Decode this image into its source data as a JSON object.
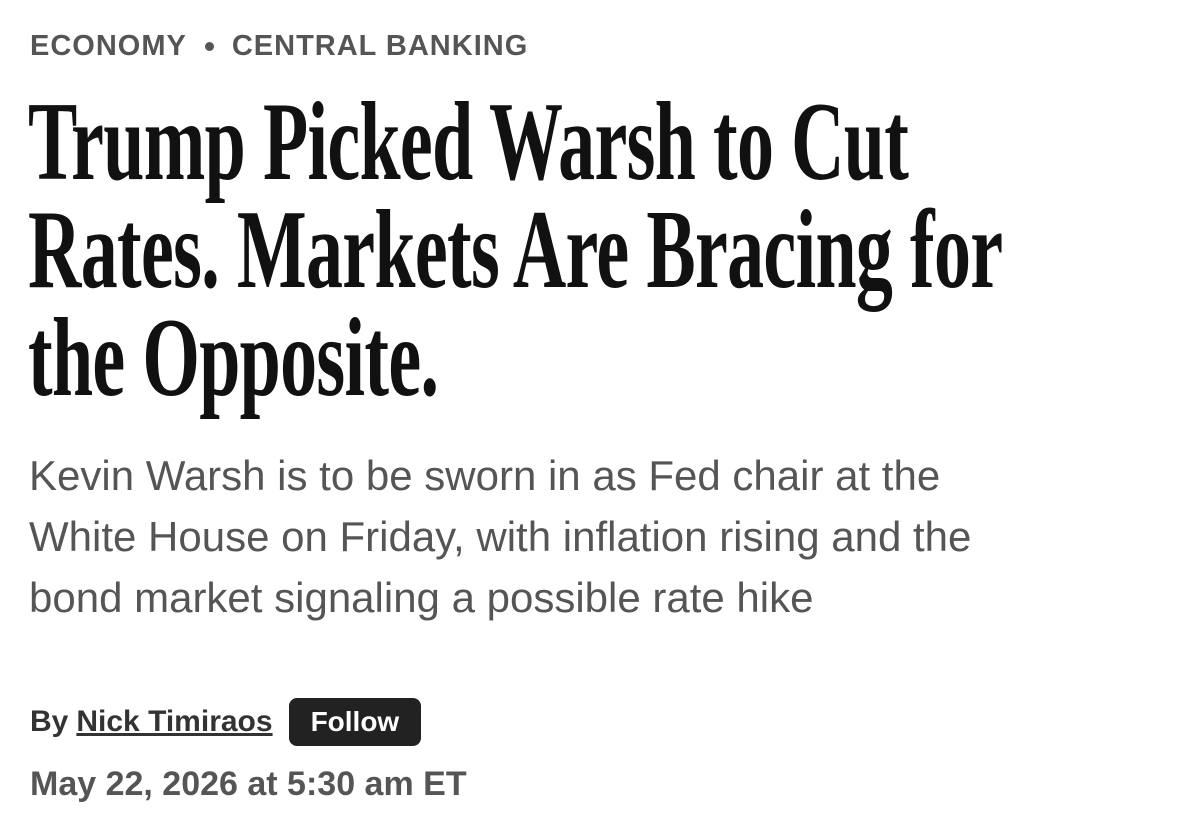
{
  "breadcrumbs": [
    "ECONOMY",
    "CENTRAL BANKING"
  ],
  "headline_lines": [
    "Trump Picked Warsh to Cut",
    "Rates. Markets Are Bracing for",
    "the Opposite."
  ],
  "dek_lines": [
    "Kevin Warsh is to be sworn in as Fed chair at the",
    "White House on Friday, with inflation rising and the",
    "bond market signaling a possible rate hike"
  ],
  "byline": {
    "prefix": "By",
    "author": "Nick Timiraos",
    "follow": "Follow"
  },
  "date": "May 22, 2026 at 5:30 am ET"
}
